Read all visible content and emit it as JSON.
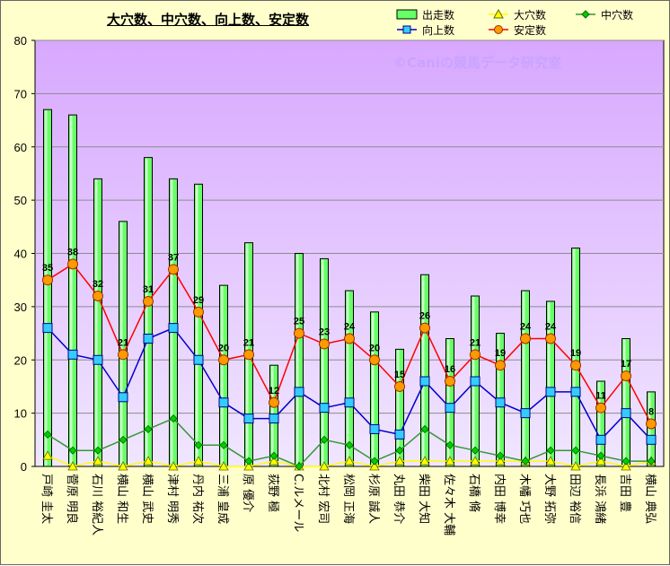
{
  "chart_data": {
    "type": "bar",
    "title": "大穴数、中穴数、向上数、安定数",
    "watermark": "©Caniの競馬データ研究室",
    "ylim": [
      0,
      80
    ],
    "yticks": [
      0,
      10,
      20,
      30,
      40,
      50,
      60,
      70,
      80
    ],
    "grid": true,
    "legend_position": "top-right",
    "plot_background": [
      "#d8a8ff",
      "#f0e6ff"
    ],
    "categories": [
      "戸崎 圭太",
      "菅原 明良",
      "石川 裕紀人",
      "横山 和生",
      "横山 武史",
      "津村 明秀",
      "丹内 祐次",
      "三浦 皇成",
      "原 優介",
      "荻野 極",
      "C.ルメール",
      "北村 宏司",
      "松岡 正海",
      "杉原 誠人",
      "丸田 恭介",
      "柴田 大知",
      "佐々木 大輔",
      "石橋 脩",
      "内田 博幸",
      "木幡 巧也",
      "大野 拓弥",
      "田辺 裕信",
      "長浜 鴻緒",
      "吉田 豊",
      "横山 典弘"
    ],
    "series": [
      {
        "name": "出走数",
        "kind": "bar",
        "color": "#66ff66",
        "values": [
          67,
          66,
          54,
          46,
          58,
          54,
          53,
          34,
          42,
          19,
          40,
          39,
          33,
          29,
          22,
          36,
          24,
          32,
          25,
          33,
          31,
          41,
          16,
          24,
          14
        ]
      },
      {
        "name": "大穴数",
        "kind": "line",
        "color": "#ffff00",
        "values": [
          2,
          0,
          1,
          0,
          1,
          0,
          1,
          0,
          0,
          1,
          0,
          0,
          1,
          0,
          1,
          1,
          1,
          1,
          1,
          1,
          1,
          0,
          1,
          0,
          1
        ]
      },
      {
        "name": "中穴数",
        "kind": "line",
        "color": "#339933",
        "values": [
          6,
          3,
          3,
          5,
          7,
          9,
          4,
          4,
          1,
          2,
          0,
          5,
          4,
          1,
          3,
          7,
          4,
          3,
          2,
          1,
          3,
          3,
          2,
          1,
          1
        ]
      },
      {
        "name": "向上数",
        "kind": "line",
        "color": "#0000cc",
        "values": [
          26,
          21,
          20,
          13,
          24,
          26,
          20,
          12,
          9,
          9,
          14,
          11,
          12,
          7,
          6,
          16,
          11,
          16,
          12,
          10,
          14,
          14,
          5,
          10,
          5
        ]
      },
      {
        "name": "安定数",
        "kind": "line",
        "color": "#ff0000",
        "values": [
          35,
          38,
          32,
          21,
          31,
          37,
          29,
          20,
          21,
          12,
          25,
          23,
          24,
          20,
          15,
          26,
          16,
          21,
          19,
          24,
          24,
          19,
          11,
          17,
          8
        ],
        "data_labels": true
      }
    ]
  }
}
